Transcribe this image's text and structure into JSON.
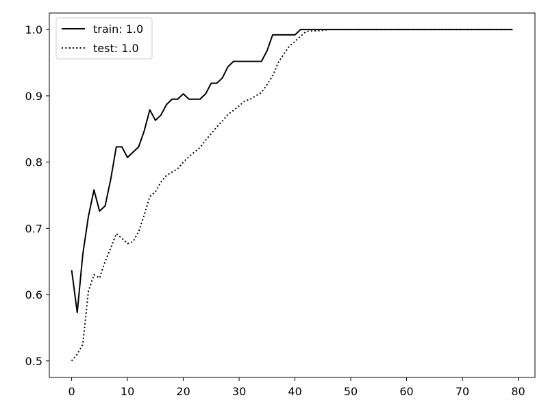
{
  "chart_data": {
    "type": "line",
    "title": "",
    "xlabel": "",
    "ylabel": "",
    "xlim": [
      -4,
      83
    ],
    "ylim": [
      0.475,
      1.025
    ],
    "xticks": [
      0,
      10,
      20,
      30,
      40,
      50,
      60,
      70,
      80
    ],
    "yticks": [
      0.5,
      0.6,
      0.7,
      0.8,
      0.9,
      1.0
    ],
    "xtick_labels": [
      "0",
      "10",
      "20",
      "30",
      "40",
      "50",
      "60",
      "70",
      "80"
    ],
    "ytick_labels": [
      "0.5",
      "0.6",
      "0.7",
      "0.8",
      "0.9",
      "1.0"
    ],
    "grid": false,
    "legend_position": "top-left",
    "series": [
      {
        "name": "train: 1.0",
        "style": "solid",
        "color": "#000000",
        "x": [
          0,
          1,
          2,
          3,
          4,
          5,
          6,
          7,
          8,
          9,
          10,
          11,
          12,
          13,
          14,
          15,
          16,
          17,
          18,
          19,
          20,
          21,
          22,
          23,
          24,
          25,
          26,
          27,
          28,
          29,
          30,
          31,
          32,
          33,
          34,
          35,
          36,
          37,
          38,
          39,
          40,
          41,
          42,
          43,
          44,
          45,
          46,
          47,
          48,
          49,
          50,
          51,
          52,
          53,
          54,
          55,
          56,
          57,
          58,
          59,
          60,
          61,
          62,
          63,
          64,
          65,
          66,
          67,
          68,
          69,
          70,
          71,
          72,
          73,
          74,
          75,
          76,
          77,
          78,
          79
        ],
        "values": [
          0.637,
          0.573,
          0.661,
          0.718,
          0.758,
          0.726,
          0.734,
          0.774,
          0.823,
          0.823,
          0.807,
          0.815,
          0.823,
          0.847,
          0.879,
          0.863,
          0.871,
          0.887,
          0.895,
          0.895,
          0.903,
          0.895,
          0.895,
          0.895,
          0.903,
          0.919,
          0.919,
          0.927,
          0.944,
          0.952,
          0.952,
          0.952,
          0.952,
          0.952,
          0.952,
          0.968,
          0.992,
          0.992,
          0.992,
          0.992,
          0.992,
          1.0,
          1.0,
          1.0,
          1.0,
          1.0,
          1.0,
          1.0,
          1.0,
          1.0,
          1.0,
          1.0,
          1.0,
          1.0,
          1.0,
          1.0,
          1.0,
          1.0,
          1.0,
          1.0,
          1.0,
          1.0,
          1.0,
          1.0,
          1.0,
          1.0,
          1.0,
          1.0,
          1.0,
          1.0,
          1.0,
          1.0,
          1.0,
          1.0,
          1.0,
          1.0,
          1.0,
          1.0,
          1.0,
          1.0
        ]
      },
      {
        "name": "test: 1.0",
        "style": "dotted",
        "color": "#000000",
        "x": [
          0,
          1,
          2,
          3,
          4,
          5,
          6,
          7,
          8,
          9,
          10,
          11,
          12,
          13,
          14,
          15,
          16,
          17,
          18,
          19,
          20,
          21,
          22,
          23,
          24,
          25,
          26,
          27,
          28,
          29,
          30,
          31,
          32,
          33,
          34,
          35,
          36,
          37,
          38,
          39,
          40,
          41,
          42,
          43,
          44,
          45,
          46,
          47,
          48,
          49,
          50,
          51,
          52,
          53,
          54,
          55,
          56,
          57,
          58,
          59,
          60,
          61,
          62,
          63,
          64,
          65,
          66,
          67,
          68,
          69,
          70,
          71,
          72,
          73,
          74,
          75,
          76,
          77,
          78,
          79
        ],
        "values": [
          0.5,
          0.51,
          0.525,
          0.605,
          0.63,
          0.625,
          0.65,
          0.67,
          0.692,
          0.685,
          0.677,
          0.68,
          0.695,
          0.72,
          0.748,
          0.755,
          0.77,
          0.78,
          0.785,
          0.79,
          0.8,
          0.808,
          0.815,
          0.822,
          0.833,
          0.843,
          0.853,
          0.862,
          0.872,
          0.878,
          0.885,
          0.892,
          0.895,
          0.9,
          0.905,
          0.917,
          0.93,
          0.95,
          0.963,
          0.975,
          0.982,
          0.99,
          0.997,
          0.998,
          0.998,
          0.999,
          1.0,
          1.0,
          1.0,
          1.0,
          1.0,
          1.0,
          1.0,
          1.0,
          1.0,
          1.0,
          1.0,
          1.0,
          1.0,
          1.0,
          1.0,
          1.0,
          1.0,
          1.0,
          1.0,
          1.0,
          1.0,
          1.0,
          1.0,
          1.0,
          1.0,
          1.0,
          1.0,
          1.0,
          1.0,
          1.0,
          1.0,
          1.0,
          1.0,
          1.0
        ]
      }
    ]
  }
}
